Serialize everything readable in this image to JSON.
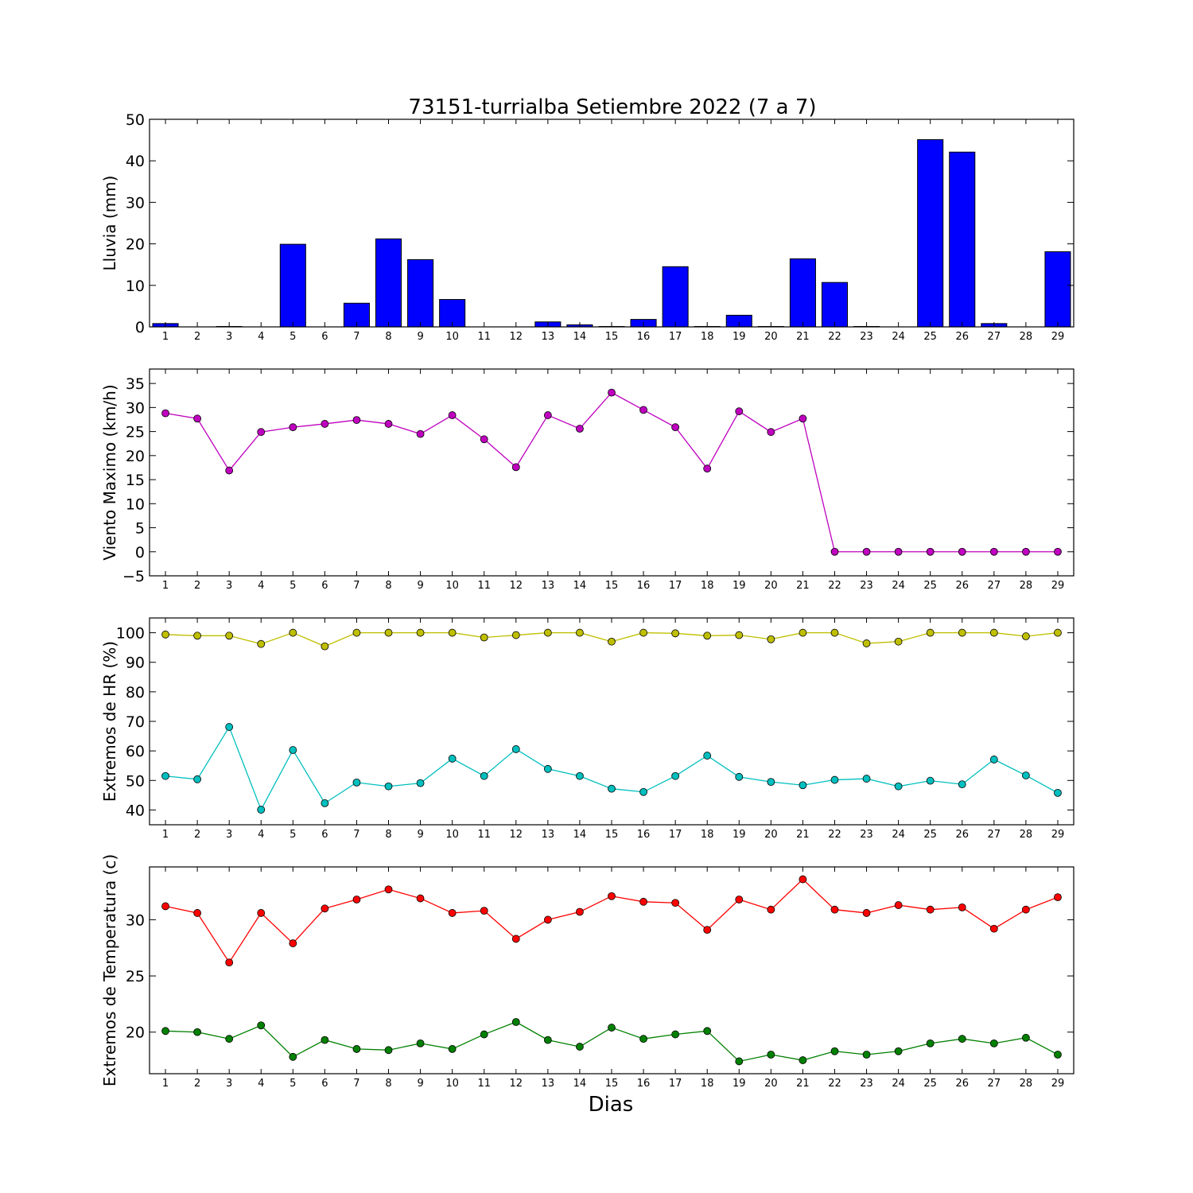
{
  "figure": {
    "title": "73151-turrialba Setiembre 2022  (7 a 7)",
    "xlabel": "Dias"
  },
  "chart_data": [
    {
      "type": "bar",
      "ylabel": "Lluvia (mm)",
      "ylim": [
        0,
        50
      ],
      "yticks": [
        0,
        10,
        20,
        30,
        40,
        50
      ],
      "categories": [
        1,
        2,
        3,
        4,
        5,
        6,
        7,
        8,
        9,
        10,
        11,
        12,
        13,
        14,
        15,
        16,
        17,
        18,
        19,
        20,
        21,
        22,
        23,
        24,
        25,
        26,
        27,
        28,
        29
      ],
      "values": [
        0.8,
        0,
        0.1,
        0,
        19.9,
        0,
        5.7,
        21.2,
        16.2,
        6.6,
        0,
        0,
        1.2,
        0.5,
        0.1,
        1.8,
        14.5,
        0.1,
        2.8,
        0.1,
        16.4,
        10.7,
        0.1,
        0,
        45.1,
        42.1,
        0.8,
        0,
        18.1
      ],
      "colors": [
        "#0000ff"
      ]
    },
    {
      "type": "line",
      "ylabel": "Viento Maximo (km/h)",
      "ylim": [
        -5,
        38
      ],
      "yticks": [
        -5,
        0,
        5,
        10,
        15,
        20,
        25,
        30,
        35
      ],
      "x": [
        1,
        2,
        3,
        4,
        5,
        6,
        7,
        8,
        9,
        10,
        11,
        12,
        13,
        14,
        15,
        16,
        17,
        18,
        19,
        20,
        21,
        22,
        23,
        24,
        25,
        26,
        27,
        28,
        29
      ],
      "series": [
        {
          "values": [
            28.8,
            27.7,
            16.9,
            24.9,
            25.9,
            26.6,
            27.4,
            26.6,
            24.5,
            28.4,
            23.4,
            17.6,
            28.4,
            25.6,
            33.1,
            29.5,
            25.9,
            17.3,
            29.2,
            24.9,
            27.7,
            0,
            0,
            0,
            0,
            0,
            0,
            0,
            0
          ],
          "color": "#bf00bf"
        }
      ]
    },
    {
      "type": "line",
      "ylabel": "Extremos de HR (%)",
      "ylim": [
        35,
        105
      ],
      "yticks": [
        40,
        50,
        60,
        70,
        80,
        90,
        100
      ],
      "x": [
        1,
        2,
        3,
        4,
        5,
        6,
        7,
        8,
        9,
        10,
        11,
        12,
        13,
        14,
        15,
        16,
        17,
        18,
        19,
        20,
        21,
        22,
        23,
        24,
        25,
        26,
        27,
        28,
        29
      ],
      "series": [
        {
          "values": [
            99.4,
            99,
            99,
            96.2,
            100,
            95.4,
            100,
            100,
            100,
            100,
            98.4,
            99.2,
            100,
            100,
            97,
            100,
            99.8,
            99,
            99.2,
            97.8,
            100,
            100,
            96.4,
            97,
            100,
            100,
            100,
            98.8,
            100
          ],
          "color": "#bfbf00"
        },
        {
          "values": [
            51.5,
            50.4,
            68.1,
            40.1,
            60.3,
            42.3,
            49.3,
            48,
            49.1,
            57.4,
            51.5,
            60.6,
            53.9,
            51.5,
            47.2,
            46.1,
            51.5,
            58.4,
            51.2,
            49.5,
            48.4,
            50.2,
            50.6,
            48,
            49.9,
            48.7,
            57.1,
            51.7,
            45.8
          ],
          "color": "#00bfbf"
        }
      ]
    },
    {
      "type": "line",
      "ylabel": "Extremos de Temperatura (c)",
      "ylim": [
        16.3,
        34.7
      ],
      "yticks": [
        20,
        25,
        30
      ],
      "x": [
        1,
        2,
        3,
        4,
        5,
        6,
        7,
        8,
        9,
        10,
        11,
        12,
        13,
        14,
        15,
        16,
        17,
        18,
        19,
        20,
        21,
        22,
        23,
        24,
        25,
        26,
        27,
        28,
        29
      ],
      "series": [
        {
          "values": [
            31.2,
            30.6,
            26.2,
            30.6,
            27.9,
            31,
            31.8,
            32.7,
            31.9,
            30.6,
            30.8,
            28.3,
            30,
            30.7,
            32.1,
            31.6,
            31.5,
            29.1,
            31.8,
            30.9,
            33.6,
            30.9,
            30.6,
            31.3,
            30.9,
            31.1,
            29.2,
            30.9,
            32
          ],
          "color": "#ff0000"
        },
        {
          "values": [
            20.1,
            20,
            19.4,
            20.6,
            17.8,
            19.3,
            18.5,
            18.4,
            19,
            18.5,
            19.8,
            20.9,
            19.3,
            18.7,
            20.4,
            19.4,
            19.8,
            20.1,
            17.4,
            18,
            17.5,
            18.3,
            18,
            18.3,
            19,
            19.4,
            19,
            19.5,
            18
          ],
          "color": "#008000"
        }
      ]
    }
  ]
}
